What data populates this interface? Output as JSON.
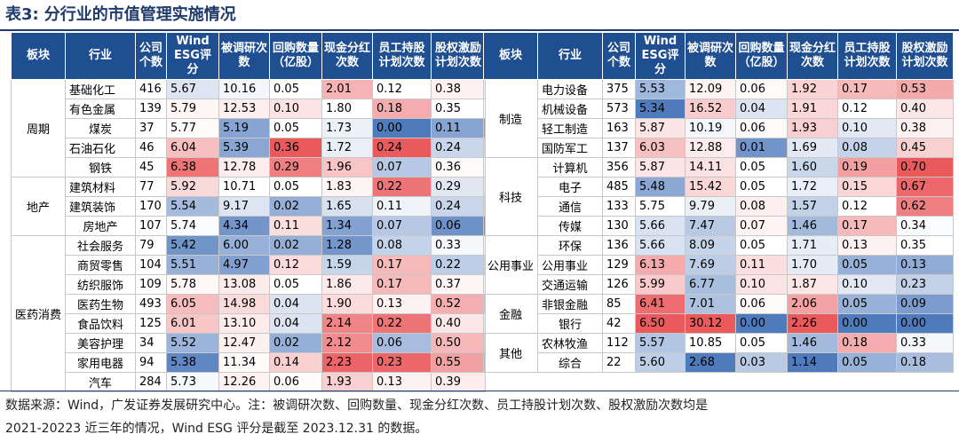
{
  "title": {
    "label": "表3:",
    "text": "分行业的市值管理实施情况"
  },
  "headers": [
    "板块",
    "行业",
    "公司个数",
    "Wind ESG评分",
    "被调研次数",
    "回购数量（亿股）",
    "现金分红次数",
    "员工持股计划次数",
    "股权激励计划次数"
  ],
  "colors": {
    "header_bg": "#1f4e91",
    "high": "#e8474a",
    "low": "#3b6bb5",
    "title": "#1f3b6b"
  },
  "left_groups": [
    {
      "sector": "周期",
      "rows": [
        {
          "industry": "基础化工",
          "values": [
            "416",
            "5.67",
            "10.16",
            "0.05",
            "2.01",
            "0.12",
            "0.38"
          ]
        },
        {
          "industry": "有色金属",
          "values": [
            "139",
            "5.79",
            "12.53",
            "0.10",
            "1.80",
            "0.18",
            "0.35"
          ]
        },
        {
          "industry": "煤炭",
          "values": [
            "37",
            "5.77",
            "5.19",
            "0.05",
            "1.73",
            "0.00",
            "0.11"
          ]
        },
        {
          "industry": "石油石化",
          "values": [
            "46",
            "6.04",
            "5.39",
            "0.36",
            "1.72",
            "0.24",
            "0.24"
          ]
        },
        {
          "industry": "钢铁",
          "values": [
            "45",
            "6.38",
            "12.78",
            "0.29",
            "1.96",
            "0.07",
            "0.36"
          ]
        }
      ]
    },
    {
      "sector": "地产",
      "rows": [
        {
          "industry": "建筑材料",
          "values": [
            "77",
            "5.92",
            "10.71",
            "0.05",
            "1.83",
            "0.22",
            "0.29"
          ]
        },
        {
          "industry": "建筑装饰",
          "values": [
            "170",
            "5.54",
            "9.17",
            "0.02",
            "1.65",
            "0.11",
            "0.24"
          ]
        },
        {
          "industry": "房地产",
          "values": [
            "107",
            "5.74",
            "4.34",
            "0.11",
            "1.34",
            "0.07",
            "0.06"
          ]
        }
      ]
    },
    {
      "sector": "医药消费",
      "rows": [
        {
          "industry": "社会服务",
          "values": [
            "79",
            "5.42",
            "6.00",
            "0.02",
            "1.28",
            "0.08",
            "0.33"
          ]
        },
        {
          "industry": "商贸零售",
          "values": [
            "104",
            "5.51",
            "4.97",
            "0.12",
            "1.59",
            "0.17",
            "0.22"
          ]
        },
        {
          "industry": "纺织服饰",
          "values": [
            "109",
            "5.78",
            "13.08",
            "0.05",
            "1.86",
            "0.17",
            "0.37"
          ]
        },
        {
          "industry": "医药生物",
          "values": [
            "493",
            "6.05",
            "14.98",
            "0.04",
            "1.90",
            "0.13",
            "0.52"
          ]
        },
        {
          "industry": "食品饮料",
          "values": [
            "125",
            "6.01",
            "13.10",
            "0.04",
            "2.14",
            "0.22",
            "0.40"
          ]
        },
        {
          "industry": "美容护理",
          "values": [
            "34",
            "5.52",
            "12.47",
            "0.02",
            "2.12",
            "0.06",
            "0.50"
          ]
        },
        {
          "industry": "家用电器",
          "values": [
            "94",
            "5.38",
            "11.34",
            "0.14",
            "2.23",
            "0.23",
            "0.55"
          ]
        },
        {
          "industry": "汽车",
          "values": [
            "284",
            "5.73",
            "12.26",
            "0.06",
            "1.93",
            "0.13",
            "0.39"
          ]
        }
      ]
    }
  ],
  "right_groups": [
    {
      "sector": "制造",
      "rows": [
        {
          "industry": "电力设备",
          "values": [
            "375",
            "5.53",
            "12.09",
            "0.06",
            "1.92",
            "0.17",
            "0.53"
          ]
        },
        {
          "industry": "机械设备",
          "values": [
            "573",
            "5.34",
            "16.52",
            "0.04",
            "1.91",
            "0.12",
            "0.40"
          ]
        },
        {
          "industry": "轻工制造",
          "values": [
            "163",
            "5.87",
            "10.19",
            "0.06",
            "1.93",
            "0.10",
            "0.38"
          ]
        },
        {
          "industry": "国防军工",
          "values": [
            "137",
            "6.03",
            "12.88",
            "0.01",
            "1.69",
            "0.08",
            "0.45"
          ]
        }
      ]
    },
    {
      "sector": "科技",
      "rows": [
        {
          "industry": "计算机",
          "values": [
            "356",
            "5.87",
            "14.11",
            "0.05",
            "1.60",
            "0.19",
            "0.70"
          ]
        },
        {
          "industry": "电子",
          "values": [
            "485",
            "5.48",
            "15.42",
            "0.05",
            "1.72",
            "0.15",
            "0.67"
          ]
        },
        {
          "industry": "通信",
          "values": [
            "133",
            "5.75",
            "9.79",
            "0.08",
            "1.57",
            "0.12",
            "0.62"
          ]
        },
        {
          "industry": "传媒",
          "values": [
            "130",
            "5.66",
            "7.47",
            "0.07",
            "1.46",
            "0.17",
            "0.34"
          ]
        }
      ]
    },
    {
      "sector": "公用事业",
      "rows": [
        {
          "industry": "环保",
          "values": [
            "136",
            "5.66",
            "8.09",
            "0.05",
            "1.71",
            "0.13",
            "0.35"
          ]
        },
        {
          "industry": "公用事业",
          "values": [
            "129",
            "6.13",
            "7.69",
            "0.11",
            "1.70",
            "0.05",
            "0.13"
          ]
        },
        {
          "industry": "交通运输",
          "values": [
            "126",
            "5.99",
            "6.77",
            "0.10",
            "1.87",
            "0.10",
            "0.23"
          ]
        }
      ]
    },
    {
      "sector": "金融",
      "rows": [
        {
          "industry": "非银金融",
          "values": [
            "85",
            "6.41",
            "7.01",
            "0.06",
            "2.06",
            "0.05",
            "0.09"
          ]
        },
        {
          "industry": "银行",
          "values": [
            "42",
            "6.50",
            "30.12",
            "0.00",
            "2.26",
            "0.00",
            "0.00"
          ]
        }
      ]
    },
    {
      "sector": "其他",
      "rows": [
        {
          "industry": "农林牧渔",
          "values": [
            "112",
            "5.57",
            "10.85",
            "0.05",
            "1.46",
            "0.18",
            "0.33"
          ]
        },
        {
          "industry": "综合",
          "values": [
            "22",
            "5.60",
            "2.68",
            "0.03",
            "1.14",
            "0.05",
            "0.18"
          ]
        }
      ]
    }
  ],
  "footnote_line1": "数据来源：Wind，广发证券发展研究中心。注：被调研次数、回购数量、现金分红次数、员工持股计划次数、股权激励次数均是",
  "footnote_line2": "2021-20223 近三年的情况，Wind ESG 评分是截至 2023.12.31 的数据。"
}
